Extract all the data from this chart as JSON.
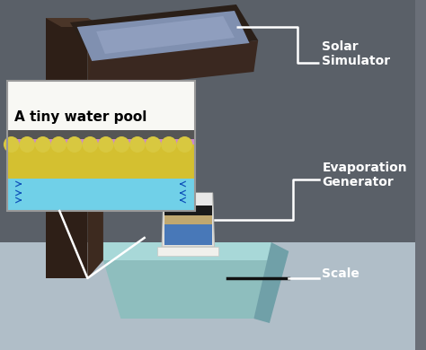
{
  "figsize": [
    4.74,
    3.9
  ],
  "dpi": 100,
  "bg_color": "#6a6f78",
  "labels": {
    "solar_simulator": "Solar\nSimulator",
    "evaporation_generator": "Evaporation\nGenerator",
    "scale": "Scale",
    "water_pool": "A tiny water pool"
  },
  "label_fontsize": 10,
  "label_color": "#ffffff",
  "line_color": "#ffffff",
  "scale_line_color": "#111111",
  "floor_color": "#b8c0cc",
  "post_dark": "#2e1f17",
  "post_mid": "#3d2a1f",
  "panel_blue": "#7090b8",
  "panel_dark": "#2a1f18",
  "scale_base_color": "#9ec0c0",
  "cup_white": "#e8e8e4",
  "cup_blue": "#5588cc",
  "cup_tan": "#c0a870",
  "cup_dark": "#222222"
}
